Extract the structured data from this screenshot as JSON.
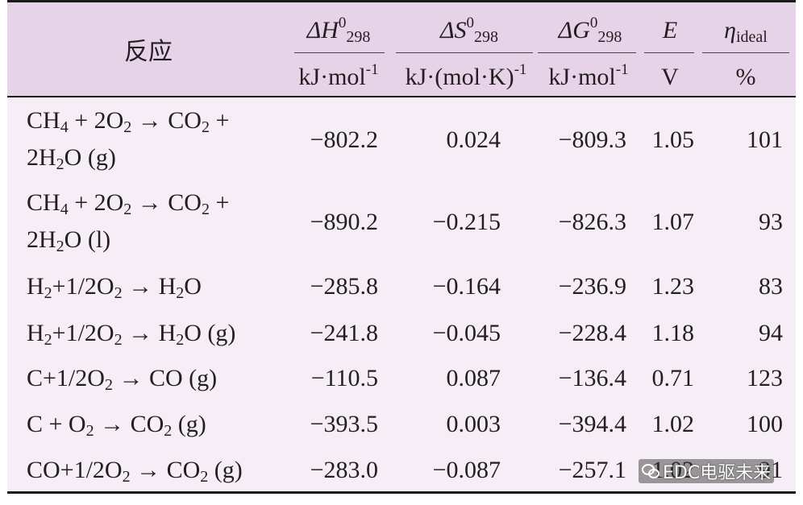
{
  "header": {
    "reaction": "反应",
    "dH_symbol": "ΔH",
    "dH_sup": "0",
    "dH_sub": "298",
    "dH_unit_a": "kJ·mol",
    "dH_unit_sup": "-1",
    "dS_symbol": "ΔS",
    "dS_sup": "0",
    "dS_sub": "298",
    "dS_unit_a": "kJ·(mol·K)",
    "dS_unit_sup": "-1",
    "dG_symbol": "ΔG",
    "dG_sup": "0",
    "dG_sub": "298",
    "dG_unit_a": "kJ·mol",
    "dG_unit_sup": "-1",
    "E_symbol": "E",
    "E_unit": "V",
    "eta_symbol": "η",
    "eta_sub": "ideal",
    "eta_unit": "%"
  },
  "rows": [
    {
      "dH": "−802.2",
      "dS": "0.024",
      "dG": "−809.3",
      "E": "1.05",
      "eta": "101"
    },
    {
      "dH": "−890.2",
      "dS": "−0.215",
      "dG": "−826.3",
      "E": "1.07",
      "eta": "93"
    },
    {
      "dH": "−285.8",
      "dS": "−0.164",
      "dG": "−236.9",
      "E": "1.23",
      "eta": "83"
    },
    {
      "dH": "−241.8",
      "dS": "−0.045",
      "dG": "−228.4",
      "E": "1.18",
      "eta": "94"
    },
    {
      "dH": "−110.5",
      "dS": "0.087",
      "dG": "−136.4",
      "E": "0.71",
      "eta": "123"
    },
    {
      "dH": "−393.5",
      "dS": "0.003",
      "dG": "−394.4",
      "E": "1.02",
      "eta": "100"
    },
    {
      "dH": "−283.0",
      "dS": "−0.087",
      "dG": "−257.1",
      "E": "1.02",
      "eta": "91"
    }
  ],
  "reactions": {
    "r1": {
      "a": "CH",
      "a_sub": "4",
      "b": " + 2O",
      "b_sub": "2",
      "c": " → CO",
      "c_sub": "2",
      "d": " +",
      "line2_a": "2H",
      "line2_sub": "2",
      "line2_b": "O (g)"
    },
    "r2": {
      "a": "CH",
      "a_sub": "4",
      "b": " + 2O",
      "b_sub": "2",
      "c": " → CO",
      "c_sub": "2",
      "d": " +",
      "line2_a": "2H",
      "line2_sub": "2",
      "line2_b": "O (l)"
    },
    "r3": {
      "a": "H",
      "a_sub": "2",
      "b": "+1/2O",
      "b_sub": "2",
      "c": " → H",
      "c_sub": "2",
      "d": "O"
    },
    "r4": {
      "a": "H",
      "a_sub": "2",
      "b": "+1/2O",
      "b_sub": "2",
      "c": " → H",
      "c_sub": "2",
      "d": "O (g)"
    },
    "r5": {
      "a": "C+1/2O",
      "a_sub": "2",
      "b": " → CO (g)"
    },
    "r6": {
      "a": "C + O",
      "a_sub": "2",
      "b": " → CO",
      "b_sub": "2",
      "c": " (g)"
    },
    "r7": {
      "a": "CO+1/2O",
      "a_sub": "2",
      "b": " → CO",
      "b_sub": "2",
      "c": " (g)"
    }
  },
  "watermark": {
    "text": "EDC电驱未来",
    "icon": "wechat-icon"
  }
}
